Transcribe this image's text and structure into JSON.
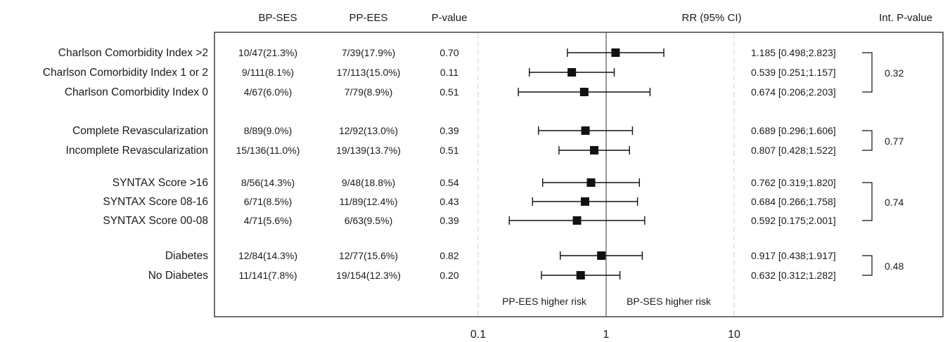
{
  "chart_data": {
    "type": "forest",
    "columns": {
      "bp_ses": "BP-SES",
      "pp_ees": "PP-EES",
      "p_value": "P-value",
      "rr_ci": "RR (95% CI)",
      "int_p": "Int. P-value"
    },
    "x_scale": "log",
    "xlim": [
      0.1,
      10
    ],
    "x_ticks": [
      "0.1",
      "1",
      "10"
    ],
    "reference_line": 1,
    "annotations": {
      "left": "PP-EES higher risk",
      "right": "BP-SES higher risk"
    },
    "rows": [
      {
        "label": "Charlson Comorbidity Index >2",
        "bp_ses": "10/47(21.3%)",
        "pp_ees": "7/39(17.9%)",
        "p": "0.70",
        "rr": 1.185,
        "lo": 0.498,
        "hi": 2.823,
        "rr_text": "1.185 [0.498;2.823]"
      },
      {
        "label": "Charlson Comorbidity Index 1 or 2",
        "bp_ses": "9/111(8.1%)",
        "pp_ees": "17/113(15.0%)",
        "p": "0.11",
        "rr": 0.539,
        "lo": 0.251,
        "hi": 1.157,
        "rr_text": "0.539 [0.251;1.157]"
      },
      {
        "label": "Charlson Comorbidity Index 0",
        "bp_ses": "4/67(6.0%)",
        "pp_ees": "7/79(8.9%)",
        "p": "0.51",
        "rr": 0.674,
        "lo": 0.206,
        "hi": 2.203,
        "rr_text": "0.674 [0.206;2.203]"
      },
      {
        "label": "Complete Revascularization",
        "bp_ses": "8/89(9.0%)",
        "pp_ees": "12/92(13.0%)",
        "p": "0.39",
        "rr": 0.689,
        "lo": 0.296,
        "hi": 1.606,
        "rr_text": "0.689 [0.296;1.606]"
      },
      {
        "label": "Incomplete Revascularization",
        "bp_ses": "15/136(11.0%)",
        "pp_ees": "19/139(13.7%)",
        "p": "0.51",
        "rr": 0.807,
        "lo": 0.428,
        "hi": 1.522,
        "rr_text": "0.807 [0.428;1.522]"
      },
      {
        "label": "SYNTAX Score >16",
        "bp_ses": "8/56(14.3%)",
        "pp_ees": "9/48(18.8%)",
        "p": "0.54",
        "rr": 0.762,
        "lo": 0.319,
        "hi": 1.82,
        "rr_text": "0.762 [0.319;1.820]"
      },
      {
        "label": "SYNTAX Score 08-16",
        "bp_ses": "6/71(8.5%)",
        "pp_ees": "11/89(12.4%)",
        "p": "0.43",
        "rr": 0.684,
        "lo": 0.266,
        "hi": 1.758,
        "rr_text": "0.684 [0.266;1.758]"
      },
      {
        "label": "SYNTAX Score 00-08",
        "bp_ses": "4/71(5.6%)",
        "pp_ees": "6/63(9.5%)",
        "p": "0.39",
        "rr": 0.592,
        "lo": 0.175,
        "hi": 2.001,
        "rr_text": "0.592 [0.175;2.001]"
      },
      {
        "label": "Diabetes",
        "bp_ses": "12/84(14.3%)",
        "pp_ees": "12/77(15.6%)",
        "p": "0.82",
        "rr": 0.917,
        "lo": 0.438,
        "hi": 1.917,
        "rr_text": "0.917 [0.438;1.917]"
      },
      {
        "label": "No Diabetes",
        "bp_ses": "11/141(7.8%)",
        "pp_ees": "19/154(12.3%)",
        "p": "0.20",
        "rr": 0.632,
        "lo": 0.312,
        "hi": 1.282,
        "rr_text": "0.632 [0.312;1.282]"
      }
    ],
    "interaction_groups": [
      {
        "rows": [
          0,
          2
        ],
        "p": "0.32"
      },
      {
        "rows": [
          3,
          4
        ],
        "p": "0.77"
      },
      {
        "rows": [
          5,
          7
        ],
        "p": "0.74"
      },
      {
        "rows": [
          8,
          9
        ],
        "p": "0.48"
      }
    ]
  }
}
